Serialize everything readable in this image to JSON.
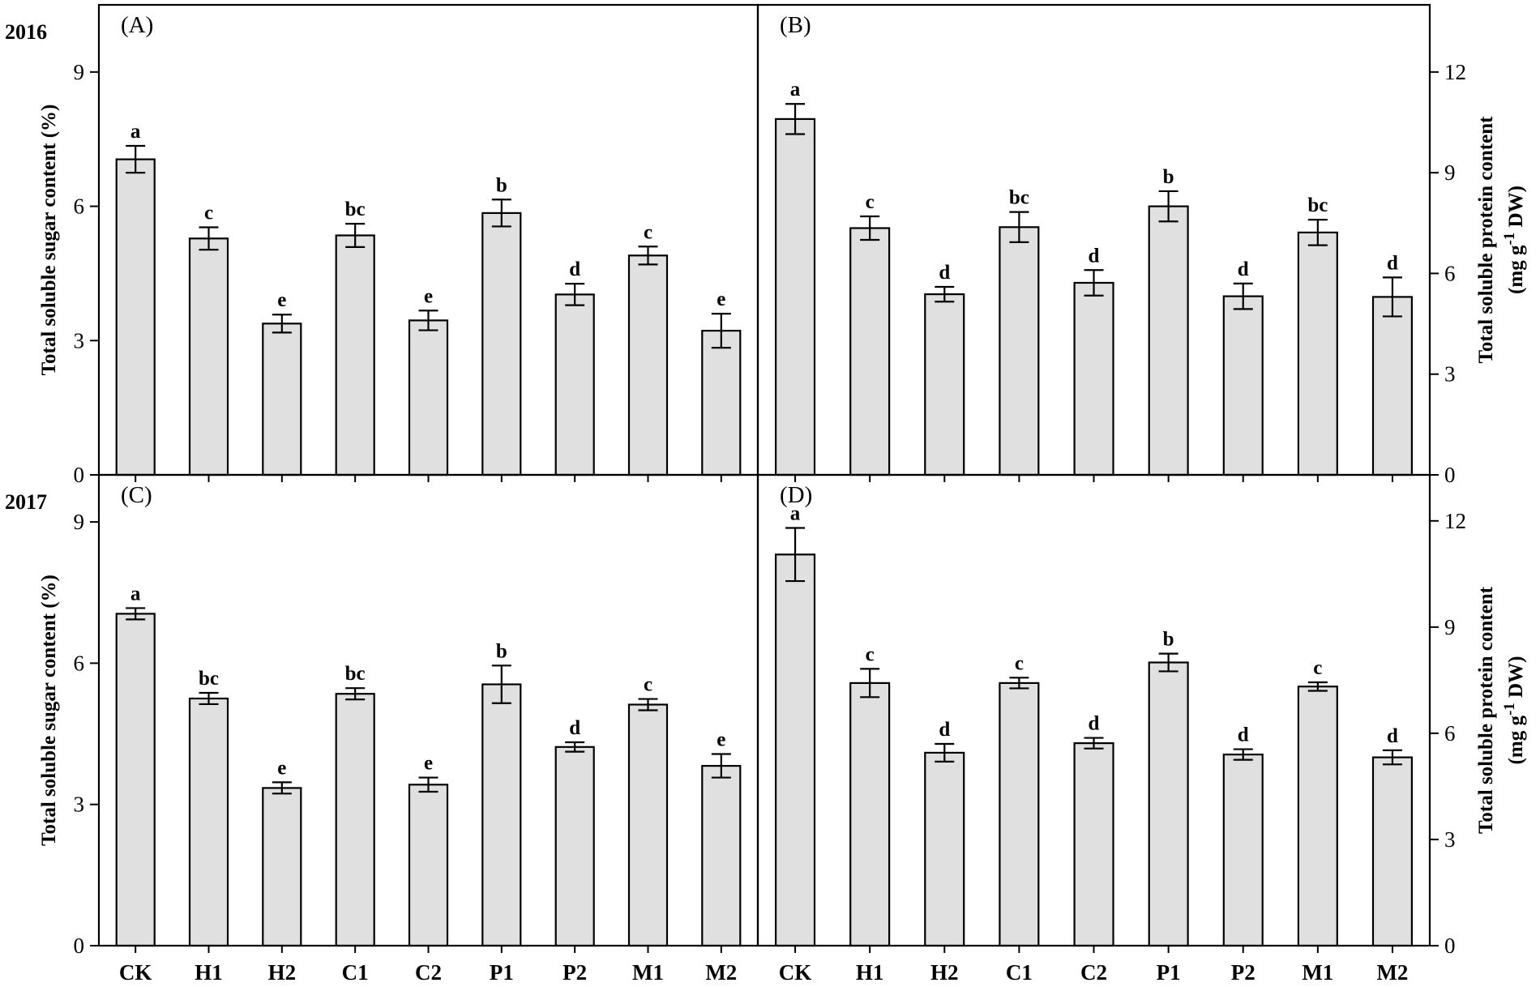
{
  "chart_data": {
    "type": "bar",
    "categories": [
      "CK",
      "H1",
      "H2",
      "C1",
      "C2",
      "P1",
      "P2",
      "M1",
      "M2"
    ],
    "panels": [
      {
        "id": "A",
        "label": "(A)",
        "year": "2016",
        "ylabel": "Total soluble sugar content (%)",
        "ylim": [
          0,
          10.5
        ],
        "yticks": [
          0,
          3,
          6,
          9
        ],
        "values": [
          7.05,
          5.28,
          3.38,
          5.35,
          3.45,
          5.85,
          4.03,
          4.9,
          3.22
        ],
        "errors": [
          0.3,
          0.25,
          0.2,
          0.26,
          0.22,
          0.3,
          0.24,
          0.2,
          0.38
        ],
        "letters": [
          "a",
          "c",
          "e",
          "bc",
          "e",
          "b",
          "d",
          "c",
          "e"
        ]
      },
      {
        "id": "B",
        "label": "(B)",
        "year": "",
        "ylabel_main": "Total soluble protein content",
        "ylabel_unit": "(mg g-1 DW)",
        "ylim": [
          0,
          14
        ],
        "yticks": [
          0,
          3,
          6,
          9,
          12
        ],
        "values": [
          10.6,
          7.35,
          5.38,
          7.38,
          5.72,
          8.0,
          5.32,
          7.22,
          5.3
        ],
        "errors": [
          0.45,
          0.35,
          0.22,
          0.45,
          0.38,
          0.45,
          0.38,
          0.38,
          0.58
        ],
        "letters": [
          "a",
          "c",
          "d",
          "bc",
          "d",
          "b",
          "d",
          "bc",
          "d"
        ]
      },
      {
        "id": "C",
        "label": "(C)",
        "year": "2017",
        "ylabel": "Total soluble sugar content (%)",
        "ylim": [
          0,
          10
        ],
        "yticks": [
          0,
          3,
          6,
          9
        ],
        "values": [
          7.05,
          5.25,
          3.35,
          5.35,
          3.42,
          5.55,
          4.22,
          5.12,
          3.82
        ],
        "errors": [
          0.12,
          0.12,
          0.12,
          0.12,
          0.15,
          0.4,
          0.1,
          0.12,
          0.25
        ],
        "letters": [
          "a",
          "bc",
          "e",
          "bc",
          "e",
          "b",
          "d",
          "c",
          "e"
        ]
      },
      {
        "id": "D",
        "label": "(D)",
        "year": "",
        "ylabel_main": "Total soluble protein content",
        "ylabel_unit": "(mg g-1 DW)",
        "ylim": [
          0,
          13.3
        ],
        "yticks": [
          0,
          3,
          6,
          9,
          12
        ],
        "values": [
          11.05,
          7.42,
          5.45,
          7.42,
          5.72,
          8.0,
          5.4,
          7.32,
          5.32
        ],
        "errors": [
          0.75,
          0.4,
          0.25,
          0.15,
          0.15,
          0.25,
          0.15,
          0.12,
          0.2
        ],
        "letters": [
          "a",
          "c",
          "d",
          "c",
          "d",
          "b",
          "d",
          "c",
          "d"
        ]
      }
    ]
  }
}
